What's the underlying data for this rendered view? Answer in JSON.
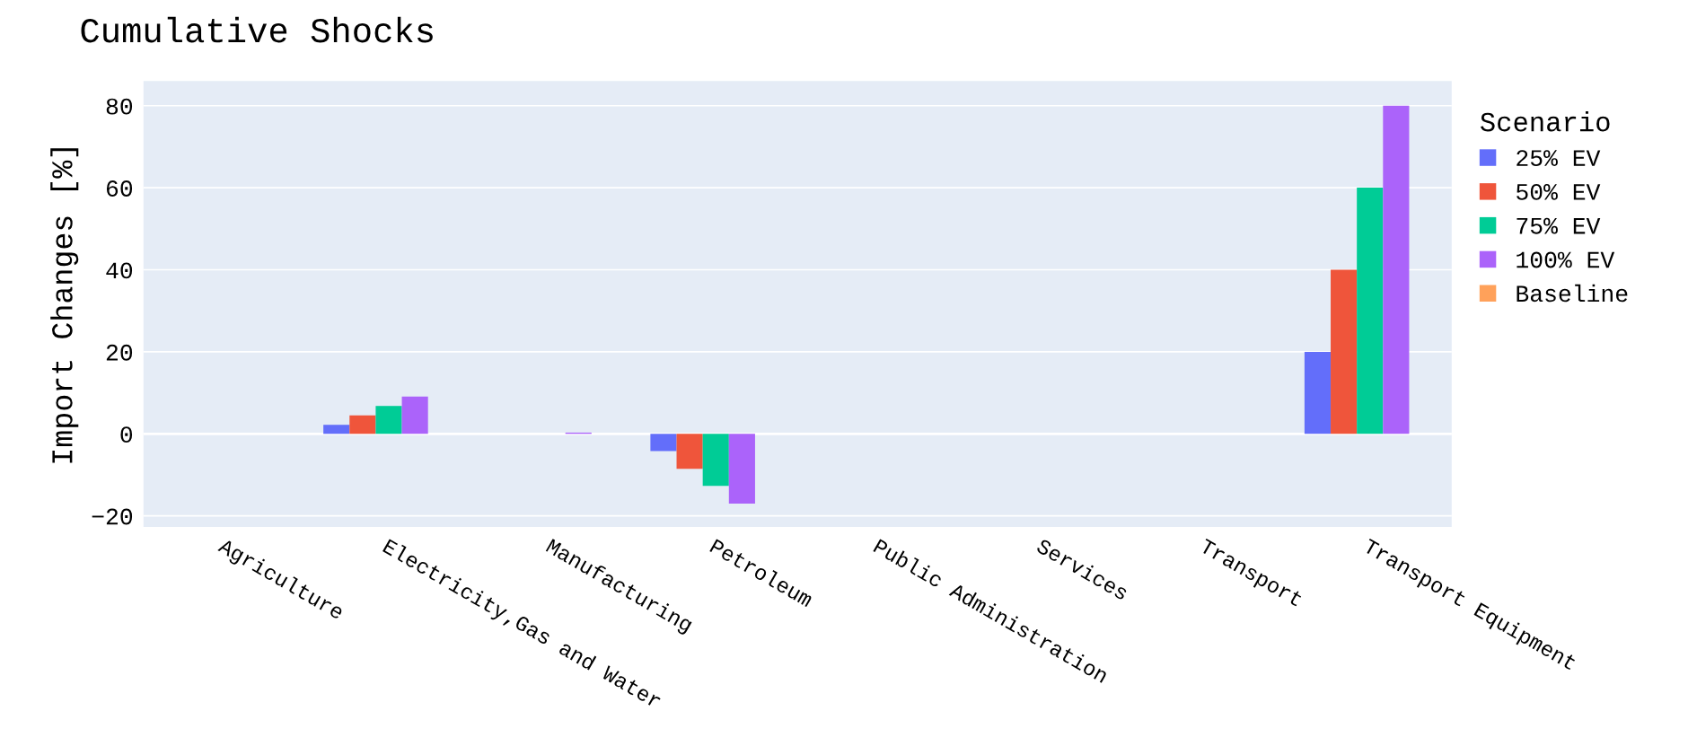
{
  "chart_data": {
    "type": "bar",
    "title": "Cumulative Shocks",
    "ylabel": "Import Changes [%]",
    "legend_title": "Scenario",
    "categories": [
      "Agriculture",
      "Electricity,Gas and Water",
      "Manufacturing",
      "Petroleum",
      "Public Administration",
      "Services",
      "Transport",
      "Transport Equipment"
    ],
    "series": [
      {
        "name": "25% EV",
        "color": "#636efa",
        "values": [
          0,
          2.2,
          0,
          -4.2,
          0,
          0,
          0,
          20
        ]
      },
      {
        "name": "50% EV",
        "color": "#ef553b",
        "values": [
          0,
          4.5,
          0,
          -8.5,
          0,
          0,
          0,
          40
        ]
      },
      {
        "name": "75% EV",
        "color": "#00cc96",
        "values": [
          0,
          6.8,
          0,
          -12.7,
          0,
          0,
          0,
          60
        ]
      },
      {
        "name": "100% EV",
        "color": "#ab63fa",
        "values": [
          0,
          9.1,
          0.3,
          -17,
          0,
          0,
          0,
          80
        ]
      },
      {
        "name": "Baseline",
        "color": "#ffa15a",
        "values": [
          0,
          0,
          0,
          0,
          0,
          0,
          0,
          0
        ]
      }
    ],
    "ylim": [
      -22.7,
      86
    ],
    "yticks": [
      {
        "value": -20,
        "label": "−20"
      },
      0,
      20,
      40,
      60,
      80
    ],
    "grid": "y",
    "legend": "right"
  }
}
